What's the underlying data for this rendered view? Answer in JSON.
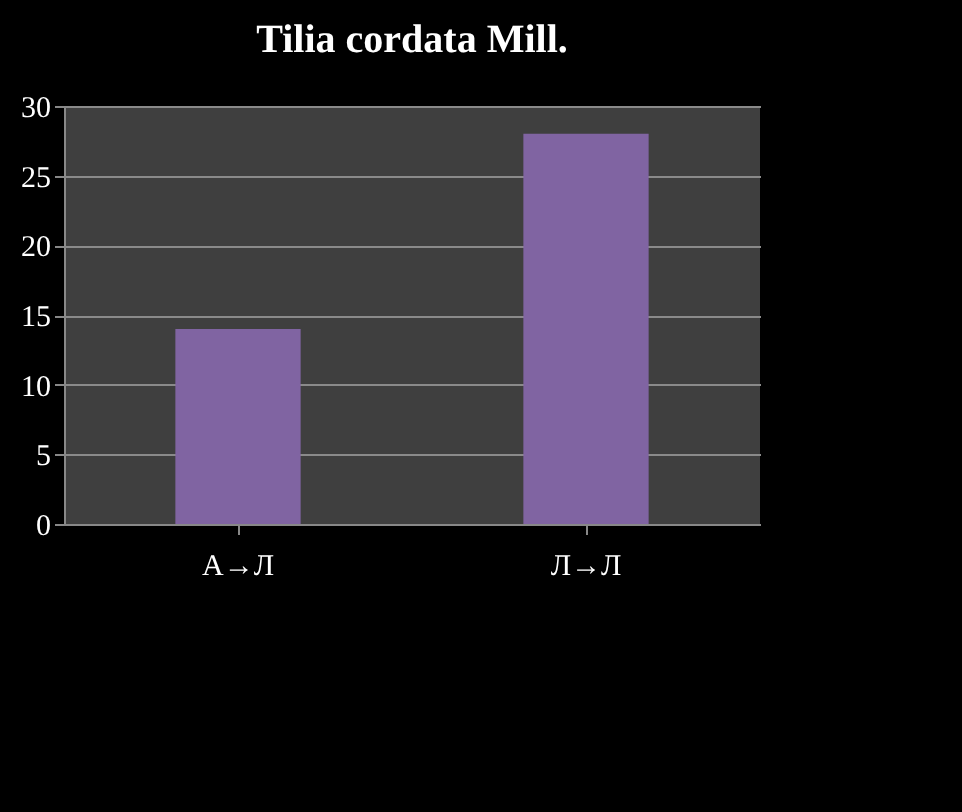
{
  "chart_data": {
    "type": "bar",
    "title": "Tilia cordata Mill.",
    "categories": [
      "А→Л",
      "Л→Л"
    ],
    "values": [
      14,
      28
    ],
    "color": "#8064a2",
    "ylim": [
      0,
      30
    ],
    "yticks": [
      0,
      5,
      10,
      15,
      20,
      25,
      30
    ],
    "grid": "y"
  }
}
